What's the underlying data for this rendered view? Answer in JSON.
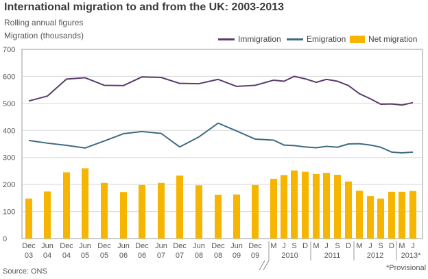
{
  "title": "International migration to and from the UK: 2003-2013",
  "subtitle": "Rolling annual figures",
  "source": "Source: ONS",
  "footnote": "*Provisional",
  "colors": {
    "immigration": "#5b3a6a",
    "emigration": "#3e6a82",
    "net": "#f5b500",
    "grid": "#d8d8d8"
  },
  "chart_data": {
    "type": "bar",
    "title": "International migration to and from the UK: 2003-2013",
    "subtitle": "Rolling annual figures",
    "ylabel": "Migration (thousands)",
    "ylim": [
      0,
      700
    ],
    "yticks": [
      0,
      100,
      200,
      300,
      400,
      500,
      600,
      700
    ],
    "grid": true,
    "legend_position": "top-right",
    "xtick_labels": [
      [
        "Dec",
        "03"
      ],
      [
        "Jun",
        "04"
      ],
      [
        "Dec",
        "04"
      ],
      [
        "Jun",
        "05"
      ],
      [
        "Dec",
        "05"
      ],
      [
        "Jun",
        "06"
      ],
      [
        "Dec",
        "06"
      ],
      [
        "Jun",
        "07"
      ],
      [
        "Dec",
        "07"
      ],
      [
        "Jun",
        "08"
      ],
      [
        "Dec",
        "08"
      ],
      [
        "Jun",
        "09"
      ],
      [
        "Dec",
        "09"
      ],
      [
        "M"
      ],
      [
        "J"
      ],
      [
        "S"
      ],
      [
        "D"
      ],
      [
        "M"
      ],
      [
        "J"
      ],
      [
        "S"
      ],
      [
        "D"
      ],
      [
        "M"
      ],
      [
        "J"
      ],
      [
        "S"
      ],
      [
        "D"
      ],
      [
        "M"
      ],
      [
        "J"
      ]
    ],
    "year_groups": [
      {
        "label": "2010"
      },
      {
        "label": "2011"
      },
      {
        "label": "2012"
      },
      {
        "label": "2013*"
      }
    ],
    "series": [
      {
        "name": "Immigration",
        "kind": "line",
        "values": [
          509,
          527,
          590,
          595,
          567,
          566,
          598,
          596,
          574,
          573,
          589,
          563,
          567,
          586,
          582,
          600,
          591,
          578,
          589,
          582,
          566,
          536,
          517,
          497,
          498,
          494,
          503
        ]
      },
      {
        "name": "Emigration",
        "kind": "line",
        "values": [
          363,
          353,
          345,
          335,
          361,
          388,
          396,
          389,
          339,
          376,
          427,
          398,
          368,
          364,
          346,
          344,
          339,
          336,
          341,
          338,
          350,
          351,
          346,
          338,
          320,
          317,
          320
        ]
      },
      {
        "name": "Net migration",
        "kind": "bar",
        "values": [
          148,
          174,
          245,
          260,
          206,
          172,
          198,
          206,
          233,
          197,
          162,
          163,
          198,
          221,
          235,
          252,
          247,
          239,
          243,
          236,
          211,
          177,
          157,
          148,
          173,
          173,
          176
        ]
      }
    ]
  }
}
